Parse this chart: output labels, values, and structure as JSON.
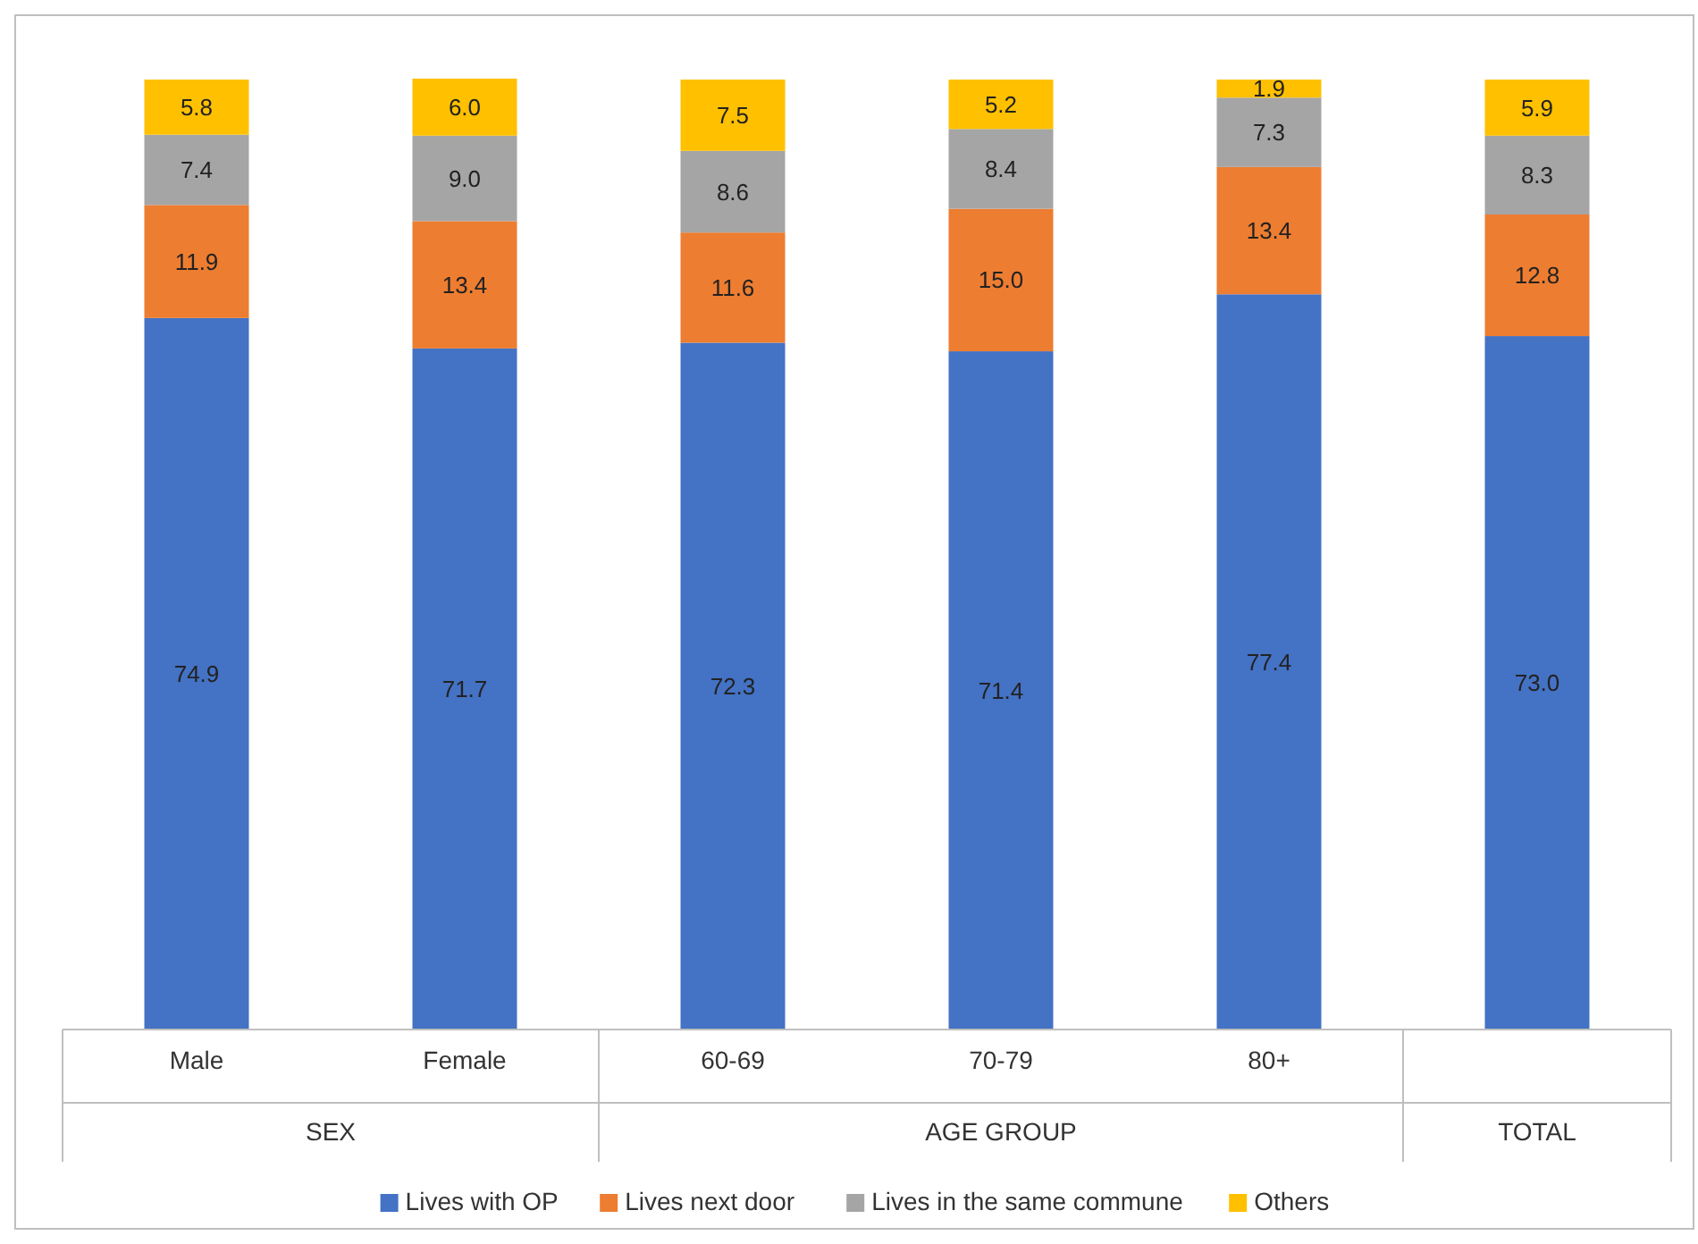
{
  "chart_data": {
    "type": "bar",
    "stacked": true,
    "legend": "bottom",
    "categories": [
      "Male",
      "Female",
      "60-69",
      "70-79",
      "80+",
      null
    ],
    "annotations": [
      "SEX",
      "AGE GROUP",
      "TOTAL"
    ],
    "series": [
      {
        "name": "Lives with OP",
        "color": "#4472c4",
        "values": [
          74.9,
          71.7,
          72.3,
          71.4,
          77.4,
          73.0
        ],
        "value_labels": [
          "74.9",
          "71.7",
          "72.3",
          "71.4",
          "77.4",
          "73.0"
        ]
      },
      {
        "name": "Lives next door",
        "color": "#ed7d31",
        "values": [
          11.9,
          13.4,
          11.6,
          15.0,
          13.4,
          12.8
        ],
        "value_labels": [
          "11.9",
          "13.4",
          "11.6",
          "15.0",
          "13.4",
          "12.8"
        ]
      },
      {
        "name": "Lives in the same commune",
        "color": "#a5a5a5",
        "values": [
          7.4,
          9.0,
          8.6,
          8.4,
          7.3,
          8.3
        ],
        "value_labels": [
          "7.4",
          "9.0",
          "8.6",
          "8.4",
          "7.3",
          "8.3"
        ]
      },
      {
        "name": "Others",
        "color": "#ffc000",
        "values": [
          5.8,
          6.0,
          7.5,
          5.2,
          1.9,
          5.9
        ],
        "value_labels": [
          "5.8",
          "6.0",
          "7.5",
          "5.2",
          "1.9",
          "5.9"
        ]
      }
    ]
  }
}
